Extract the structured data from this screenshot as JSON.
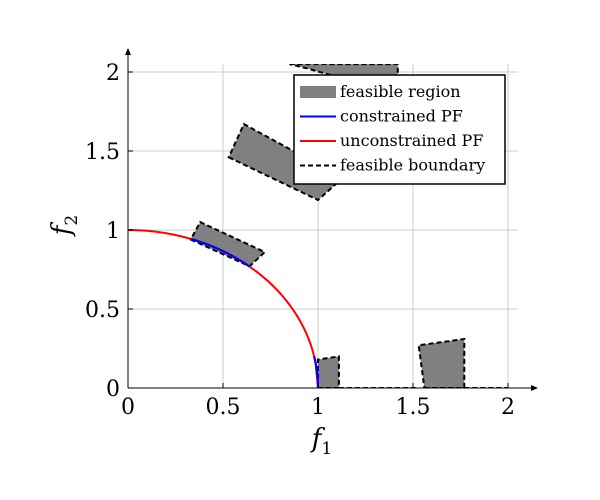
{
  "chart_data": {
    "type": "area",
    "xlabel": "f",
    "xlabel_sub": "1",
    "ylabel": "f",
    "ylabel_sub": "2",
    "xlim": [
      0,
      2.15
    ],
    "ylim": [
      0,
      2.1
    ],
    "xticks": [
      0,
      0.5,
      1,
      1.5,
      2
    ],
    "xtick_labels": [
      "0",
      "0.5",
      "1",
      "1.5",
      "2"
    ],
    "yticks": [
      0,
      0.5,
      1,
      1.5,
      2
    ],
    "ytick_labels": [
      "0",
      "0.5",
      "1",
      "1.5",
      "2"
    ],
    "grid": true,
    "legend_position": "top-right",
    "colors": {
      "feasible_region": "#808080",
      "constrained_pf": "#0000ff",
      "unconstrained_pf": "#ff0000",
      "feasible_boundary": "#000000"
    },
    "legend": [
      {
        "key": "feasible_region",
        "label": "feasible region"
      },
      {
        "key": "constrained_pf",
        "label": "constrained PF"
      },
      {
        "key": "unconstrained_pf",
        "label": "unconstrained PF"
      },
      {
        "key": "feasible_boundary",
        "label": "feasible boundary"
      }
    ],
    "feasible_regions": [
      [
        [
          0.33,
          0.94
        ],
        [
          0.64,
          0.77
        ],
        [
          0.72,
          0.86
        ],
        [
          0.38,
          1.05
        ]
      ],
      [
        [
          0.53,
          1.46
        ],
        [
          1.0,
          1.19
        ],
        [
          1.13,
          1.33
        ],
        [
          0.61,
          1.67
        ]
      ],
      [
        [
          0.85,
          2.05
        ],
        [
          1.42,
          2.05
        ],
        [
          1.42,
          1.86
        ],
        [
          0.95,
          2.02
        ]
      ],
      [
        [
          1.0,
          0
        ],
        [
          1.11,
          0
        ],
        [
          1.11,
          0.2
        ],
        [
          1.0,
          0.18
        ]
      ],
      [
        [
          1.56,
          0
        ],
        [
          1.77,
          0
        ],
        [
          1.77,
          0.31
        ],
        [
          1.53,
          0.27
        ]
      ]
    ],
    "unconstrained_pf": {
      "equation": "f1^2 + f2^2 = 1",
      "f1_range": [
        0,
        1
      ]
    },
    "constrained_pf": [
      {
        "f1_range": [
          0.33,
          0.64
        ]
      },
      {
        "f1_range": [
          0.98,
          1.0
        ]
      }
    ],
    "boundary_ground": [
      [
        1.11,
        1.53
      ],
      [
        1.77,
        2.0
      ]
    ]
  }
}
